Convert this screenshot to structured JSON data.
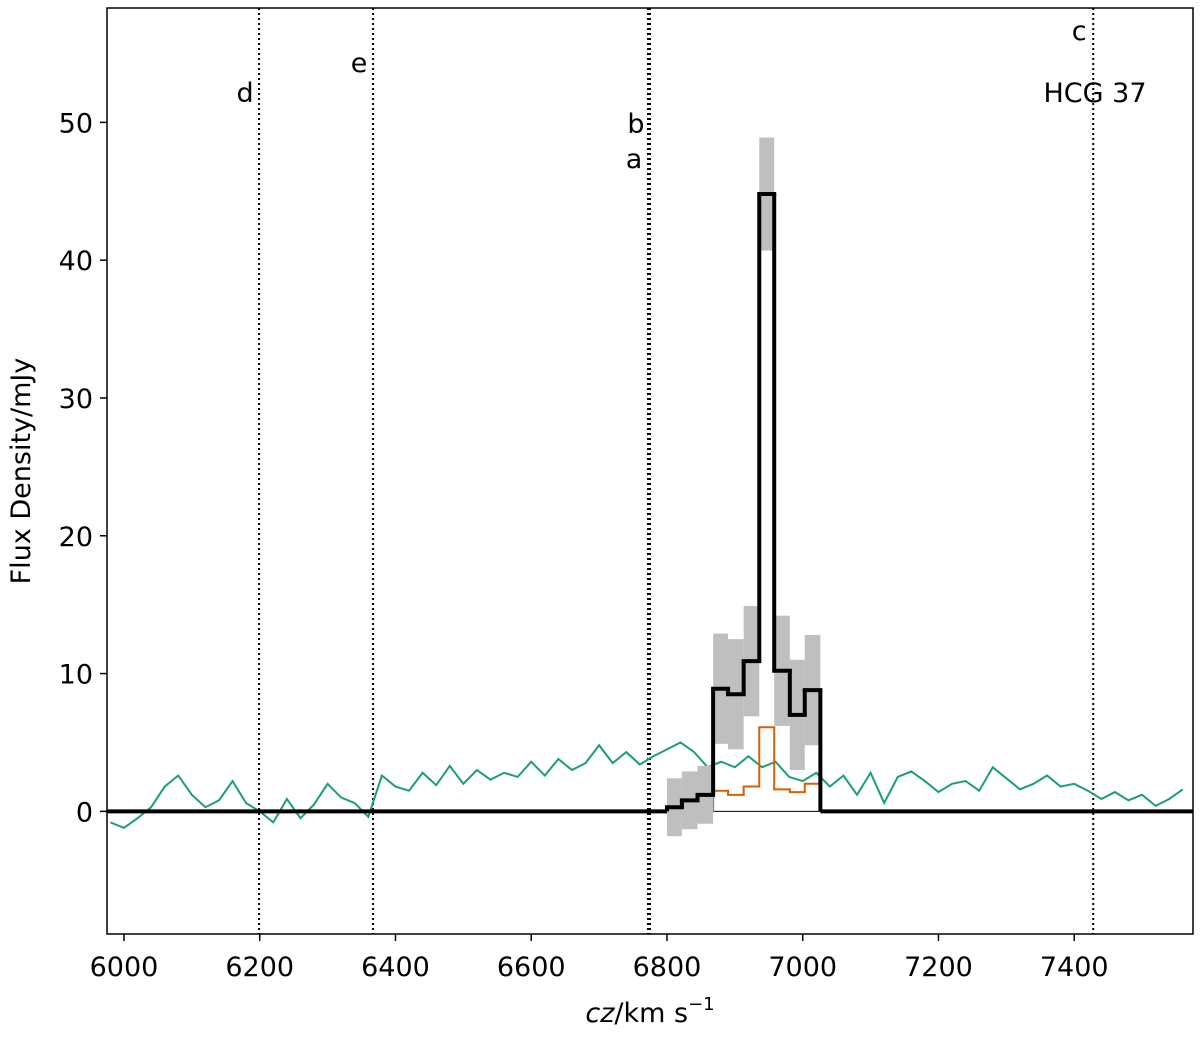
{
  "chart_data": {
    "type": "line",
    "xlabel": [
      "cz",
      "/km s",
      "−1"
    ],
    "ylabel": "Flux Density/mJy",
    "annotation": "HCG 37",
    "xlim": [
      5975,
      7575
    ],
    "ylim": [
      -8.9,
      58.3
    ],
    "xticks": [
      6000,
      6200,
      6400,
      6600,
      6800,
      7000,
      7200,
      7400
    ],
    "yticks": [
      0,
      10,
      20,
      30,
      40,
      50
    ],
    "galaxies": [
      {
        "label": "a",
        "x": 6772
      },
      {
        "label": "b",
        "x": 6775
      },
      {
        "label": "c",
        "x": 7428
      },
      {
        "label": "d",
        "x": 6199
      },
      {
        "label": "e",
        "x": 6367
      }
    ],
    "series": [
      {
        "drawstyle": "line",
        "color": "#1b9e77",
        "x": [
          5980,
          6000,
          6020,
          6040,
          6060,
          6080,
          6100,
          6120,
          6140,
          6160,
          6180,
          6200,
          6220,
          6240,
          6260,
          6280,
          6300,
          6320,
          6340,
          6360,
          6380,
          6400,
          6420,
          6440,
          6460,
          6480,
          6500,
          6520,
          6540,
          6560,
          6580,
          6600,
          6620,
          6640,
          6660,
          6680,
          6700,
          6720,
          6740,
          6760,
          6780,
          6800,
          6820,
          6840,
          6860,
          6880,
          6900,
          6920,
          6940,
          6960,
          6980,
          7000,
          7020,
          7040,
          7060,
          7080,
          7100,
          7120,
          7140,
          7160,
          7180,
          7200,
          7220,
          7240,
          7260,
          7280,
          7300,
          7320,
          7340,
          7360,
          7380,
          7400,
          7420,
          7440,
          7460,
          7480,
          7500,
          7520,
          7540,
          7560
        ],
        "values": [
          -0.8,
          -1.2,
          -0.5,
          0.3,
          1.8,
          2.6,
          1.2,
          0.3,
          0.8,
          2.2,
          0.6,
          0.0,
          -0.8,
          0.9,
          -0.5,
          0.5,
          2.0,
          1.0,
          0.6,
          -0.4,
          2.6,
          1.8,
          1.5,
          2.8,
          1.9,
          3.3,
          2.0,
          3.0,
          2.3,
          2.8,
          2.5,
          3.6,
          2.6,
          3.8,
          3.0,
          3.5,
          4.8,
          3.5,
          4.3,
          3.4,
          4.0,
          4.5,
          5.0,
          4.3,
          3.2,
          3.6,
          3.2,
          4.0,
          3.2,
          3.6,
          2.5,
          2.2,
          2.8,
          1.8,
          2.6,
          1.2,
          2.8,
          0.6,
          2.5,
          2.9,
          2.2,
          1.4,
          2.0,
          2.2,
          1.5,
          3.2,
          2.4,
          1.6,
          2.0,
          2.6,
          1.8,
          2.0,
          1.5,
          0.9,
          1.4,
          0.8,
          1.2,
          0.4,
          0.9,
          1.6
        ]
      },
      {
        "drawstyle": "steps",
        "color": "#d95f02",
        "bins": [
          6800,
          6822,
          6845,
          6868,
          6890,
          6913,
          6936,
          6958,
          6981,
          7003,
          7026
        ],
        "values": [
          0,
          0,
          0,
          1.5,
          1.2,
          1.8,
          6.1,
          1.6,
          1.4,
          2.0
        ]
      },
      {
        "drawstyle": "steps",
        "color": "#000000",
        "error_color": "#bfbfbf",
        "bins": [
          6800,
          6822,
          6845,
          6868,
          6890,
          6913,
          6936,
          6958,
          6981,
          7003,
          7026
        ],
        "values": [
          0.3,
          0.8,
          1.2,
          8.9,
          8.5,
          10.9,
          44.8,
          10.2,
          7.0,
          8.8
        ],
        "errors": [
          2.1,
          2.1,
          2.1,
          4.0,
          4.0,
          4.0,
          4.1,
          4.0,
          4.0,
          4.0
        ]
      }
    ]
  }
}
